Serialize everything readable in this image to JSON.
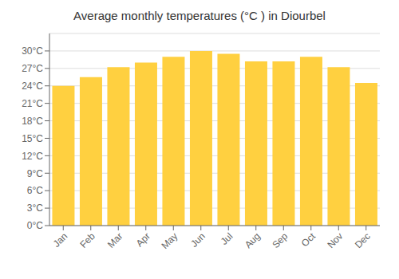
{
  "chart_data": {
    "type": "bar",
    "title": "Average monthly temperatures (°C ) in Diourbel",
    "categories": [
      "Jan",
      "Feb",
      "Mar",
      "Apr",
      "May",
      "Jun",
      "Jul",
      "Aug",
      "Sep",
      "Oct",
      "Nov",
      "Dec"
    ],
    "values": [
      24.0,
      25.5,
      27.2,
      28.0,
      29.0,
      30.0,
      29.5,
      28.2,
      28.2,
      29.0,
      27.2,
      24.5
    ],
    "color": "#FFD040",
    "ylim": [
      0,
      33
    ],
    "yticks": [
      {
        "value": 0,
        "label": "0°C"
      },
      {
        "value": 3,
        "label": "3°C"
      },
      {
        "value": 6,
        "label": "6°C"
      },
      {
        "value": 9,
        "label": "9°C"
      },
      {
        "value": 12,
        "label": "12°C"
      },
      {
        "value": 15,
        "label": "15°C"
      },
      {
        "value": 18,
        "label": "18°C"
      },
      {
        "value": 21,
        "label": "21°C"
      },
      {
        "value": 24,
        "label": "24°C"
      },
      {
        "value": 27,
        "label": "27°C"
      },
      {
        "value": 30,
        "label": "30°C"
      }
    ],
    "grid": true
  }
}
